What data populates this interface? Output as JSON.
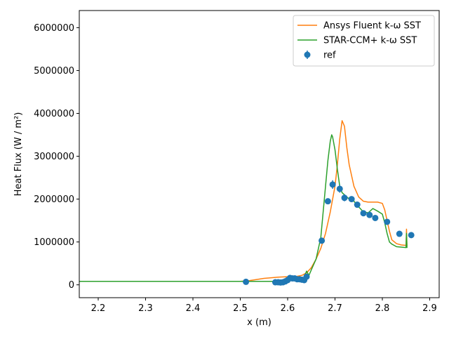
{
  "chart_data": {
    "type": "line",
    "xlabel": "x (m)",
    "ylabel": "Heat Flux (W / m²)",
    "xlim": [
      2.16,
      2.92
    ],
    "ylim": [
      -300000,
      6400000
    ],
    "xticks": [
      {
        "value": 2.2,
        "label": "2.2"
      },
      {
        "value": 2.3,
        "label": "2.3"
      },
      {
        "value": 2.4,
        "label": "2.4"
      },
      {
        "value": 2.5,
        "label": "2.5"
      },
      {
        "value": 2.6,
        "label": "2.6"
      },
      {
        "value": 2.7,
        "label": "2.7"
      },
      {
        "value": 2.8,
        "label": "2.8"
      },
      {
        "value": 2.9,
        "label": "2.9"
      }
    ],
    "yticks": [
      {
        "value": 0,
        "label": "0"
      },
      {
        "value": 1000000,
        "label": "1000000"
      },
      {
        "value": 2000000,
        "label": "2000000"
      },
      {
        "value": 3000000,
        "label": "3000000"
      },
      {
        "value": 4000000,
        "label": "4000000"
      },
      {
        "value": 5000000,
        "label": "5000000"
      },
      {
        "value": 6000000,
        "label": "6000000"
      }
    ],
    "legend_position": "top-right",
    "grid": false,
    "series": [
      {
        "name": "Ansys Fluent k-ω SST",
        "kind": "line",
        "color": "#ff7f0e",
        "x": [
          2.16,
          2.5,
          2.52,
          2.55,
          2.58,
          2.6,
          2.62,
          2.63,
          2.64,
          2.65,
          2.66,
          2.67,
          2.68,
          2.69,
          2.7,
          2.705,
          2.71,
          2.715,
          2.72,
          2.725,
          2.73,
          2.74,
          2.75,
          2.76,
          2.77,
          2.78,
          2.79,
          2.8,
          2.805,
          2.81,
          2.815,
          2.82,
          2.83,
          2.84,
          2.85,
          2.851,
          2.852
        ],
        "y": [
          80000,
          80000,
          100000,
          150000,
          180000,
          190000,
          200000,
          220000,
          280000,
          400000,
          600000,
          850000,
          1200000,
          1700000,
          2300000,
          2800000,
          3400000,
          3830000,
          3700000,
          3200000,
          2800000,
          2300000,
          2050000,
          1950000,
          1930000,
          1930000,
          1930000,
          1900000,
          1750000,
          1500000,
          1250000,
          1050000,
          960000,
          930000,
          920000,
          1300000,
          900000
        ]
      },
      {
        "name": "STAR-CCM+ k-ω SST",
        "kind": "line",
        "color": "#2ca02c",
        "x": [
          2.16,
          2.5,
          2.55,
          2.58,
          2.6,
          2.61,
          2.62,
          2.63,
          2.635,
          2.64,
          2.645,
          2.65,
          2.66,
          2.67,
          2.675,
          2.68,
          2.685,
          2.69,
          2.693,
          2.695,
          2.7,
          2.705,
          2.71,
          2.715,
          2.72,
          2.73,
          2.74,
          2.75,
          2.76,
          2.77,
          2.78,
          2.79,
          2.8,
          2.805,
          2.81,
          2.815,
          2.82,
          2.83,
          2.84,
          2.85,
          2.851,
          2.852
        ],
        "y": [
          80000,
          80000,
          80000,
          80000,
          90000,
          100000,
          110000,
          130000,
          180000,
          320000,
          220000,
          350000,
          600000,
          1100000,
          1700000,
          2300000,
          2900000,
          3350000,
          3500000,
          3450000,
          3150000,
          2700000,
          2300000,
          2150000,
          2100000,
          2000000,
          1950000,
          1820000,
          1700000,
          1680000,
          1780000,
          1720000,
          1650000,
          1450000,
          1200000,
          1000000,
          950000,
          890000,
          880000,
          870000,
          1200000,
          860000
        ]
      },
      {
        "name": "ref",
        "kind": "errorbar",
        "color": "#1f77b4",
        "x": [
          2.512,
          2.574,
          2.58,
          2.585,
          2.59,
          2.595,
          2.6,
          2.605,
          2.61,
          2.615,
          2.62,
          2.625,
          2.63,
          2.635,
          2.64,
          2.672,
          2.685,
          2.695,
          2.71,
          2.72,
          2.735,
          2.747,
          2.76,
          2.773,
          2.785,
          2.81,
          2.836,
          2.861
        ],
        "y": [
          70000,
          60000,
          60000,
          55000,
          60000,
          80000,
          110000,
          160000,
          150000,
          150000,
          130000,
          130000,
          120000,
          110000,
          190000,
          1030000,
          1950000,
          2340000,
          2240000,
          2030000,
          2000000,
          1870000,
          1670000,
          1630000,
          1560000,
          1470000,
          1190000,
          1160000
        ],
        "yerr": [
          0,
          0,
          0,
          0,
          0,
          0,
          0,
          0,
          0,
          0,
          0,
          0,
          0,
          0,
          0,
          0,
          60000,
          100000,
          90000,
          80000,
          50000,
          50000,
          40000,
          40000,
          40000,
          0,
          0,
          0
        ]
      }
    ]
  }
}
